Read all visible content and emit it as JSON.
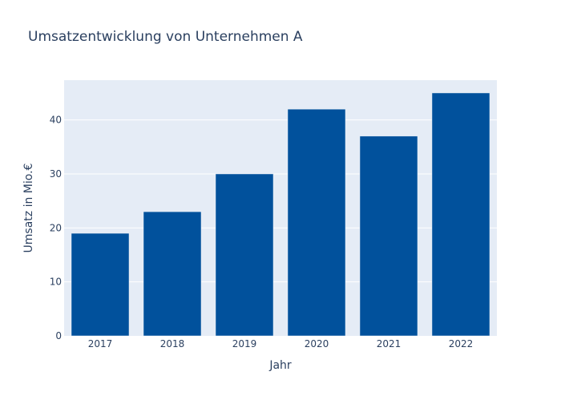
{
  "chart_data": {
    "type": "bar",
    "title": "Umsatzentwicklung von Unternehmen A",
    "xlabel": "Jahr",
    "ylabel": "Umsatz in Mio.€",
    "categories": [
      "2017",
      "2018",
      "2019",
      "2020",
      "2021",
      "2022"
    ],
    "values": [
      19,
      23,
      30,
      42,
      37,
      45
    ],
    "ylim": [
      0,
      47.37
    ],
    "yticks": [
      0,
      10,
      20,
      30,
      40
    ],
    "grid": true,
    "colors": {
      "bar": "#01519c",
      "plot_bg": "#e5ecf6",
      "grid": "#ffffff",
      "text": "#2a3f5f"
    }
  }
}
